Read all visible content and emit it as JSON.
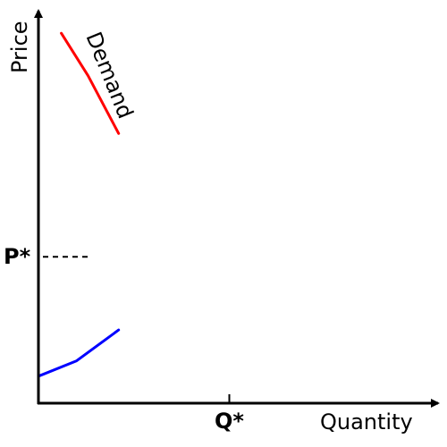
{
  "chart_data": {
    "type": "line",
    "xlabel": "Quantity",
    "ylabel": "Price",
    "xlim": [
      0,
      10
    ],
    "ylim": [
      0,
      10
    ],
    "grid": false,
    "ticks": {
      "x": [
        {
          "value": 5,
          "label": "Q*"
        }
      ],
      "y": [
        {
          "value": 3.8,
          "label": "P*"
        }
      ]
    },
    "series": [
      {
        "name": "Demand",
        "color": "#ff0000",
        "x": [
          0.6,
          1.3,
          2.1
        ],
        "y": [
          9.6,
          8.5,
          7.0
        ]
      },
      {
        "name": "",
        "color": "#0000ff",
        "x": [
          0.0,
          1.0,
          2.1
        ],
        "y": [
          0.7,
          1.1,
          1.9
        ]
      }
    ],
    "reference_lines": [
      {
        "type": "horizontal",
        "y": 3.8,
        "x_from": 0,
        "x_to": 1.4,
        "style": "dashed"
      }
    ]
  }
}
